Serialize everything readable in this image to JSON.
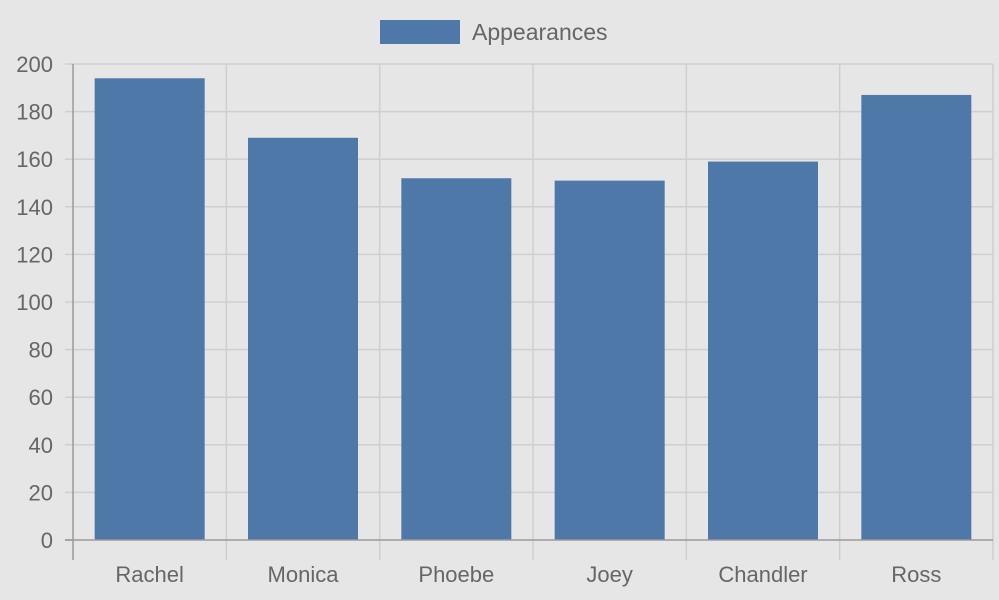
{
  "chart_data": {
    "type": "bar",
    "categories": [
      "Rachel",
      "Monica",
      "Phoebe",
      "Joey",
      "Chandler",
      "Ross"
    ],
    "series": [
      {
        "name": "Appearances",
        "values": [
          194,
          169,
          152,
          151,
          159,
          187
        ]
      }
    ],
    "ylim": [
      0,
      200
    ],
    "yticks": [
      0,
      20,
      40,
      60,
      80,
      100,
      120,
      140,
      160,
      180,
      200
    ],
    "grid": true,
    "legend_position": "top-center"
  },
  "colors": {
    "background": "#e6e6e6",
    "bar": "#4e78a8",
    "grid": "#cfcfcf",
    "axis": "#9a9a9a",
    "text": "#666666"
  }
}
